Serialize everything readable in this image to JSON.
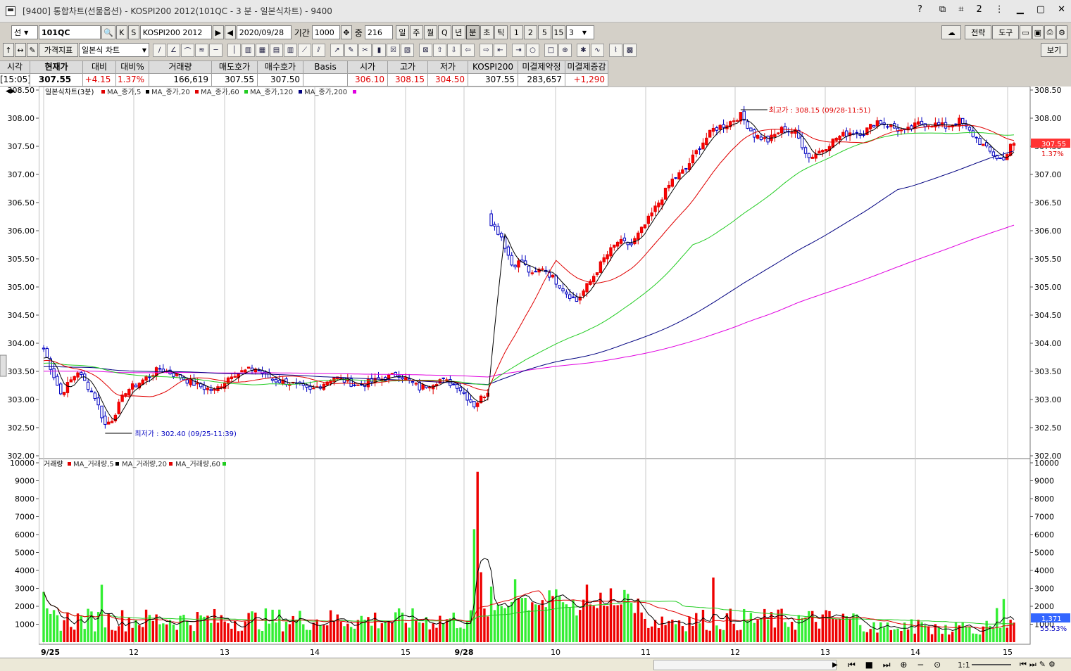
{
  "window": {
    "title": "[9400] 통합차트(선물옵션) - KOSPI200 2012(101QC - 3 분 - 일본식차트) - 9400"
  },
  "titlebar_controls": [
    "◘",
    "?",
    "⧉",
    "⌗",
    "2",
    "⋮"
  ],
  "toolbar1": {
    "market_label": "선",
    "code": "101QC",
    "k_button": "K",
    "s_button": "S",
    "product": "KOSPI200 2012",
    "date": "2020/09/28",
    "period_label": "기간",
    "period_value": "1000",
    "mid_label": "중",
    "mid_value": "216",
    "periods": [
      "일",
      "주",
      "월",
      "Q",
      "년",
      "분",
      "초",
      "틱"
    ],
    "active_period": "분",
    "numbers": [
      "1",
      "2",
      "5",
      "15"
    ],
    "interval": "3",
    "right_buttons": [
      "전략",
      "도구"
    ]
  },
  "toolbar2": {
    "indicator_button": "가격지표",
    "chart_type": "일본식 차트",
    "view_button": "보기"
  },
  "quote": {
    "headers": [
      "시각",
      "현재가",
      "대비",
      "대비%",
      "거래량",
      "매도호가",
      "매수호가",
      "Basis",
      "시가",
      "고가",
      "저가",
      "KOSPI200",
      "미결제약정",
      "미결제증감"
    ],
    "values": [
      "[15:05]",
      "307.55",
      "+4.15",
      "1.37%",
      "166,619",
      "307.55",
      "307.50",
      "",
      "306.10",
      "308.15",
      "304.50",
      "307.55",
      "283,657",
      "+1,290"
    ],
    "red_columns": [
      2,
      3,
      8,
      9,
      10,
      13
    ]
  },
  "price_chart": {
    "legend": "일본식차트(3분)",
    "ma_legends": [
      "MA_종가,5",
      "MA_종가,20",
      "MA_종가,60",
      "MA_종가,120",
      "MA_종가,200"
    ],
    "ma_colors": [
      "#e00000",
      "#000000",
      "#e00000",
      "#22cc22",
      "#000080",
      "#e000e0"
    ],
    "yticks": [
      "308.50",
      "308.00",
      "307.50",
      "307.00",
      "306.50",
      "306.00",
      "305.50",
      "305.00",
      "304.50",
      "304.00",
      "303.50",
      "303.00",
      "302.50",
      "302.00"
    ],
    "high_label": "최고가 : 308.15 (09/28-11:51)",
    "low_label": "최저가 : 302.40 (09/25-11:39)",
    "current_price_tag": "307.55",
    "current_pct_tag": "1.37%"
  },
  "volume_chart": {
    "legend": "거래량",
    "ma_legends": [
      "MA_거래량,5",
      "MA_거래량,20",
      "MA_거래량,60"
    ],
    "yticks": [
      "10000",
      "9000",
      "8000",
      "7000",
      "6000",
      "5000",
      "4000",
      "3000",
      "2000",
      "1000"
    ],
    "current_volume_tag": "1,371",
    "current_pct_tag": "55.53%"
  },
  "xaxis": {
    "labels": [
      "9/25",
      "12",
      "13",
      "14",
      "15",
      "9/28",
      "10",
      "11",
      "12",
      "13",
      "14",
      "15"
    ]
  },
  "chart_data": {
    "type": "candlestick",
    "title": "일본식차트(3분)",
    "price_range": [
      302.0,
      308.5
    ],
    "volume_range": [
      0,
      10000
    ],
    "high": {
      "value": 308.15,
      "time": "09/28-11:51"
    },
    "low": {
      "value": 302.4,
      "time": "09/25-11:39"
    },
    "last_close": 307.55,
    "session_break_index": 130,
    "anchors_close": [
      [
        0,
        303.9
      ],
      [
        5,
        303.1
      ],
      [
        10,
        303.5
      ],
      [
        15,
        303.05
      ],
      [
        18,
        302.55
      ],
      [
        20,
        302.65
      ],
      [
        24,
        303.15
      ],
      [
        28,
        303.3
      ],
      [
        34,
        303.55
      ],
      [
        40,
        303.4
      ],
      [
        45,
        303.25
      ],
      [
        50,
        303.15
      ],
      [
        55,
        303.45
      ],
      [
        62,
        303.55
      ],
      [
        67,
        303.35
      ],
      [
        72,
        303.3
      ],
      [
        78,
        303.15
      ],
      [
        85,
        303.4
      ],
      [
        92,
        303.25
      ],
      [
        98,
        303.35
      ],
      [
        104,
        303.45
      ],
      [
        110,
        303.2
      ],
      [
        116,
        303.35
      ],
      [
        121,
        303.25
      ],
      [
        126,
        302.9
      ],
      [
        130,
        303.15
      ],
      [
        131,
        306.15
      ],
      [
        134,
        305.9
      ],
      [
        137,
        305.4
      ],
      [
        140,
        305.45
      ],
      [
        143,
        305.2
      ],
      [
        146,
        305.35
      ],
      [
        150,
        305.1
      ],
      [
        153,
        304.9
      ],
      [
        156,
        304.75
      ],
      [
        160,
        305.1
      ],
      [
        164,
        305.5
      ],
      [
        168,
        305.8
      ],
      [
        172,
        305.75
      ],
      [
        176,
        306.1
      ],
      [
        180,
        306.5
      ],
      [
        184,
        306.9
      ],
      [
        188,
        307.1
      ],
      [
        192,
        307.5
      ],
      [
        196,
        307.8
      ],
      [
        200,
        307.9
      ],
      [
        204,
        308.05
      ],
      [
        208,
        307.7
      ],
      [
        212,
        307.6
      ],
      [
        216,
        307.8
      ],
      [
        220,
        307.75
      ],
      [
        224,
        307.3
      ],
      [
        228,
        307.45
      ],
      [
        232,
        307.65
      ],
      [
        236,
        307.75
      ],
      [
        240,
        307.75
      ],
      [
        244,
        307.95
      ],
      [
        248,
        307.85
      ],
      [
        252,
        307.75
      ],
      [
        256,
        307.9
      ],
      [
        260,
        307.9
      ],
      [
        264,
        307.85
      ],
      [
        268,
        307.95
      ],
      [
        272,
        307.7
      ],
      [
        276,
        307.45
      ],
      [
        279,
        307.3
      ],
      [
        281,
        307.25
      ],
      [
        283,
        307.55
      ]
    ],
    "volume_spikes": [
      [
        0,
        2800
      ],
      [
        17,
        3200
      ],
      [
        126,
        6300
      ],
      [
        127,
        9500
      ],
      [
        128,
        3900
      ],
      [
        131,
        3100
      ],
      [
        160,
        2100
      ],
      [
        196,
        3600
      ],
      [
        279,
        1900
      ],
      [
        281,
        2400
      ]
    ]
  }
}
